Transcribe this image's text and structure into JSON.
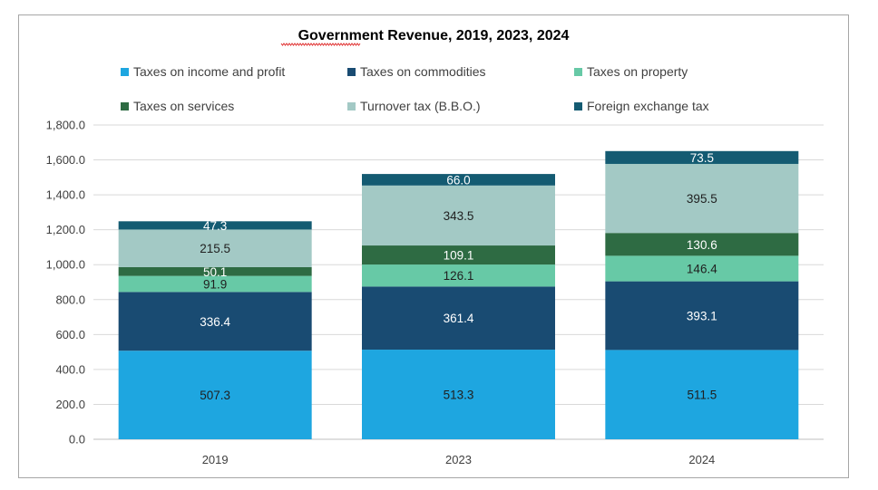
{
  "chart_data": {
    "type": "bar",
    "stacked": true,
    "title": "Government Revenue, 2019, 2023, 2024",
    "categories": [
      "2019",
      "2023",
      "2024"
    ],
    "series": [
      {
        "name": "Taxes on income and profit",
        "values": [
          507.3,
          513.3,
          511.5
        ],
        "color": "#1ea6e0",
        "label_color": "#1f1f1f"
      },
      {
        "name": "Taxes on commodities",
        "values": [
          336.4,
          361.4,
          393.1
        ],
        "color": "#194b72",
        "label_color": "#ffffff"
      },
      {
        "name": "Taxes on property",
        "values": [
          91.9,
          126.1,
          146.4
        ],
        "color": "#67c9a6",
        "label_color": "#1f1f1f"
      },
      {
        "name": "Taxes on services",
        "values": [
          50.1,
          109.1,
          130.6
        ],
        "color": "#2e6b43",
        "label_color": "#ffffff"
      },
      {
        "name": "Turnover tax (B.B.O.)",
        "values": [
          215.5,
          343.5,
          395.5
        ],
        "color": "#a3c9c5",
        "label_color": "#1f1f1f"
      },
      {
        "name": "Foreign exchange tax",
        "values": [
          47.3,
          66.0,
          73.5
        ],
        "color": "#145b72",
        "label_color": "#ffffff"
      }
    ],
    "y_ticks": [
      "0.0",
      "200.0",
      "400.0",
      "600.0",
      "800.0",
      "1,000.0",
      "1,200.0",
      "1,400.0",
      "1,600.0",
      "1,800.0"
    ],
    "ylim": [
      0,
      1800
    ],
    "grid": true,
    "legend_position": "top"
  }
}
